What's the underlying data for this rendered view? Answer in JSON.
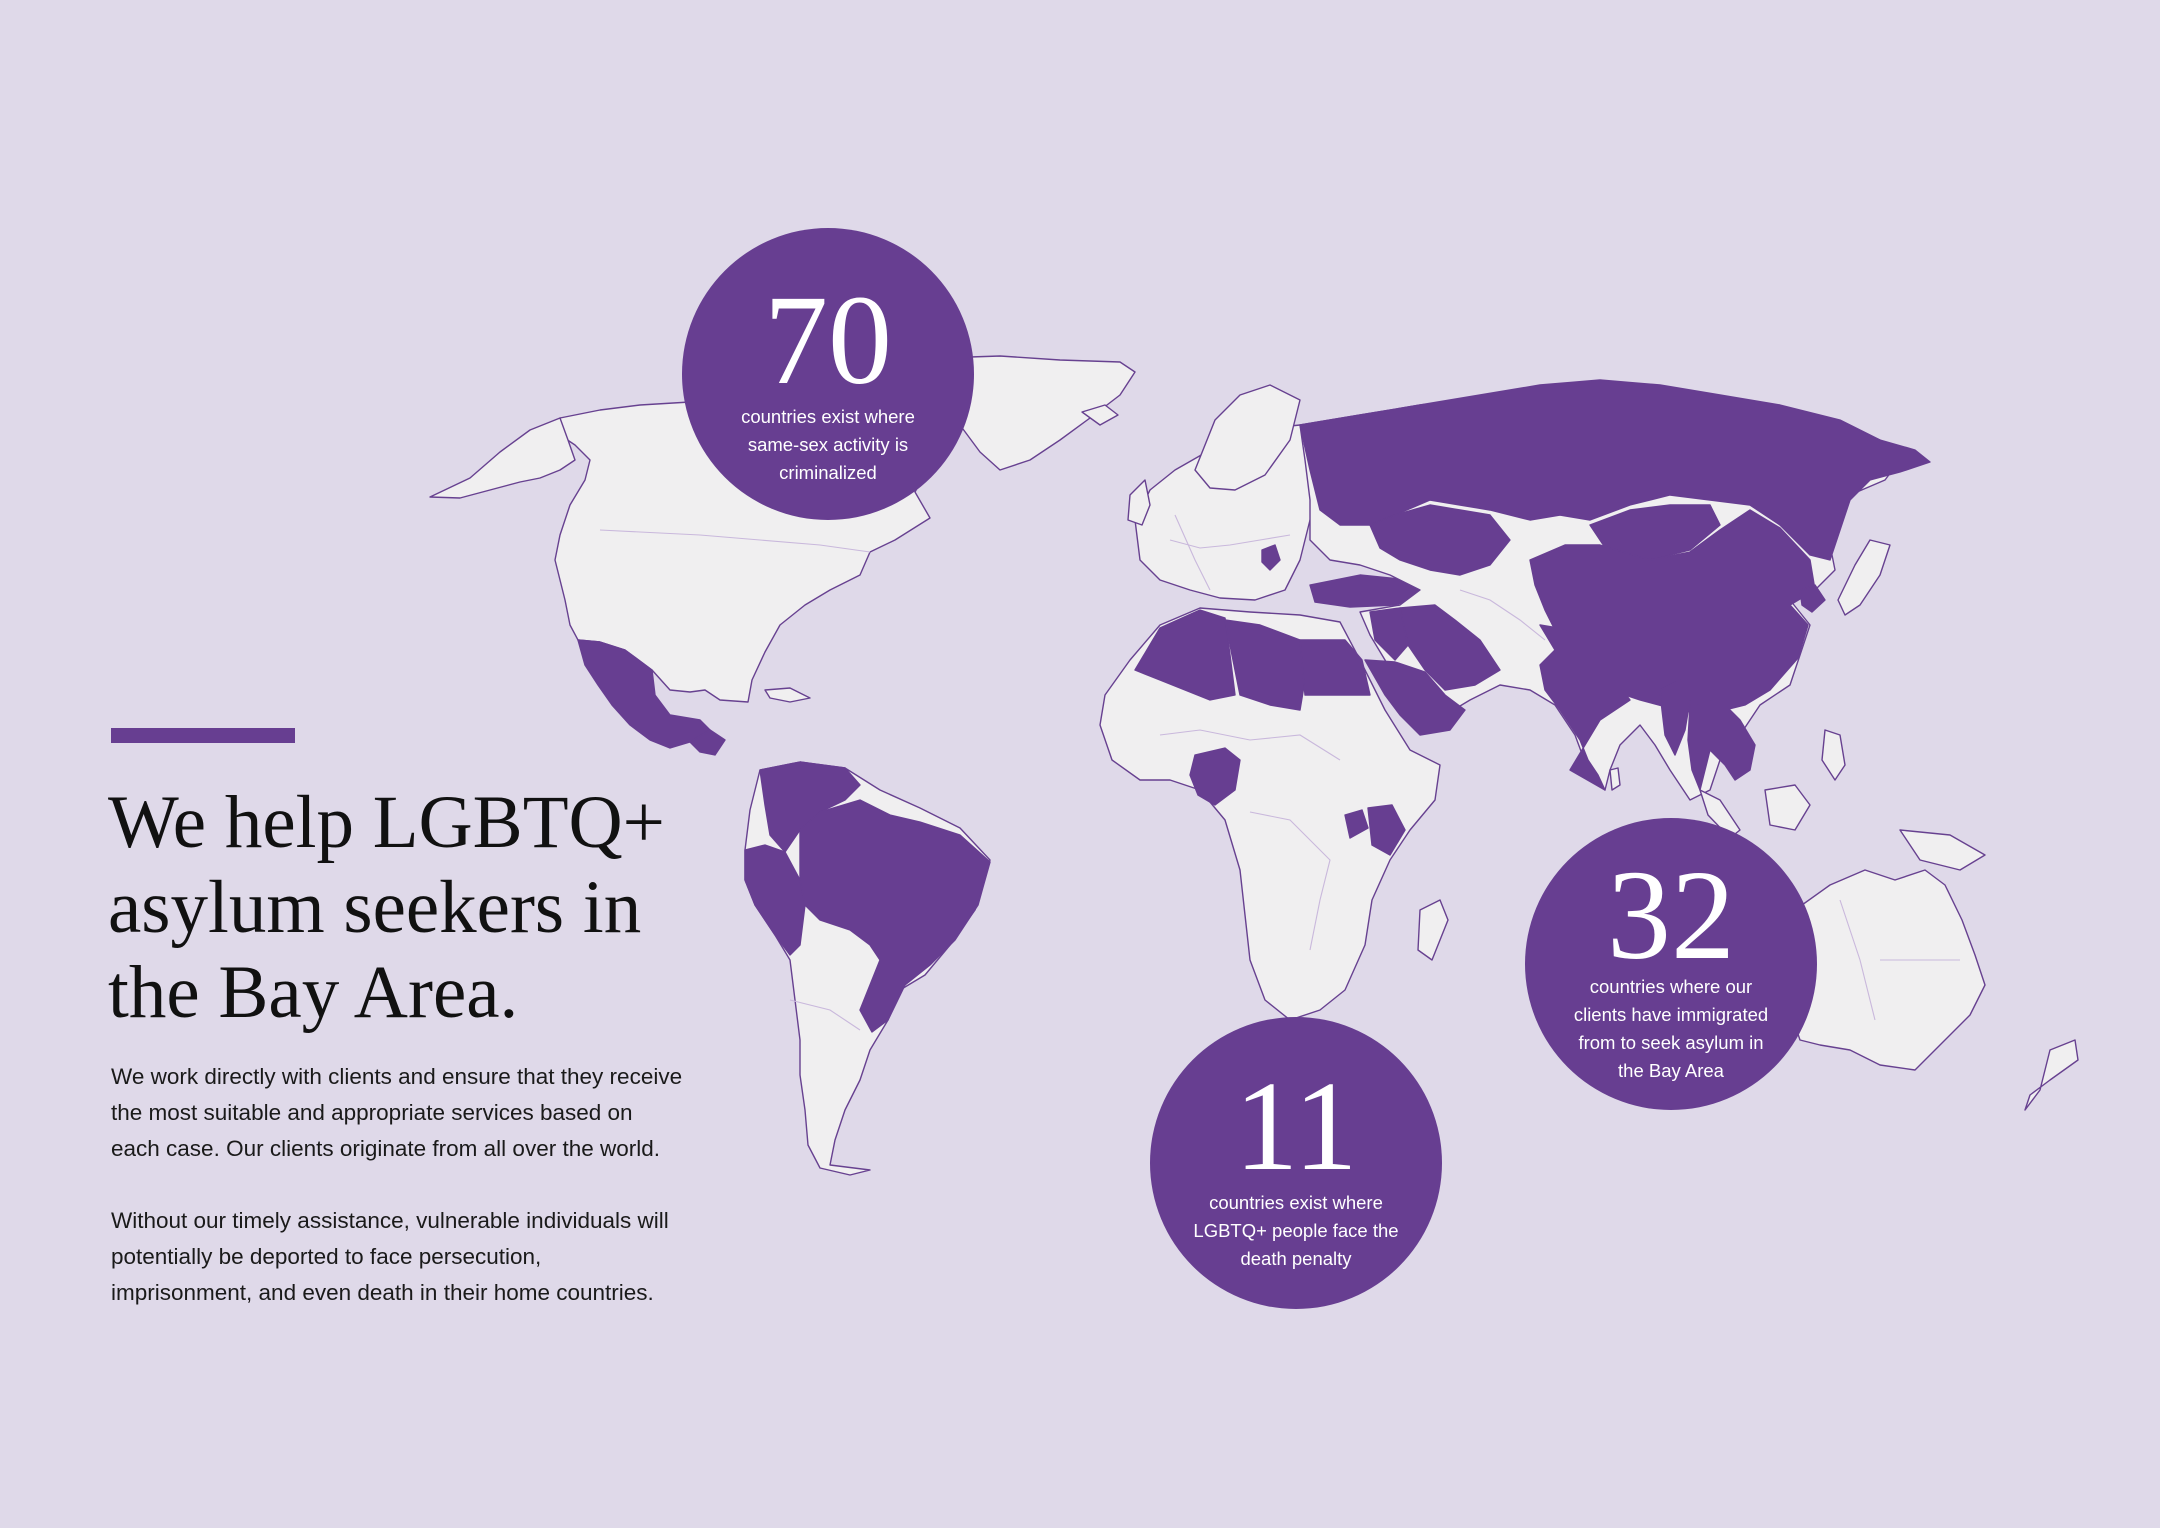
{
  "colors": {
    "background": "#dfd9e9",
    "accent": "#673e91",
    "land": "#f0eff0",
    "text": "#111111"
  },
  "map": {
    "projection": "world",
    "highlighted_regions": [
      "Mexico",
      "Guatemala",
      "Honduras",
      "Colombia",
      "Venezuela",
      "Peru",
      "Brazil",
      "Russia",
      "Kazakhstan",
      "Turkey",
      "Serbia",
      "Iran",
      "Iraq",
      "Saudi Arabia",
      "Egypt",
      "Libya",
      "Algeria",
      "Nigeria",
      "Uganda",
      "Kenya",
      "India",
      "China",
      "Mongolia",
      "Myanmar",
      "Thailand",
      "Vietnam",
      "North Korea"
    ]
  },
  "headline": "We help LGBTQ+\nasylum seekers in\nthe Bay Area.",
  "body": {
    "paragraph_1": "We work directly with clients and ensure that they receive\nthe most suitable and appropriate services based on\neach case. Our clients originate from all over the world.",
    "paragraph_2": "Without our timely assistance, vulnerable individuals will\npotentially be deported to face persecution,\nimprisonment, and even death in their home countries."
  },
  "stats": {
    "criminalized": {
      "number": "70",
      "caption": "countries exist where\nsame-sex activity is\ncriminalized"
    },
    "clients_origin": {
      "number": "32",
      "caption": "countries where our\nclients have immigrated\nfrom to seek asylum in\nthe Bay Area"
    },
    "death_penalty": {
      "number": "11",
      "caption": "countries exist where\nLGBTQ+ people face the\ndeath penalty"
    }
  }
}
